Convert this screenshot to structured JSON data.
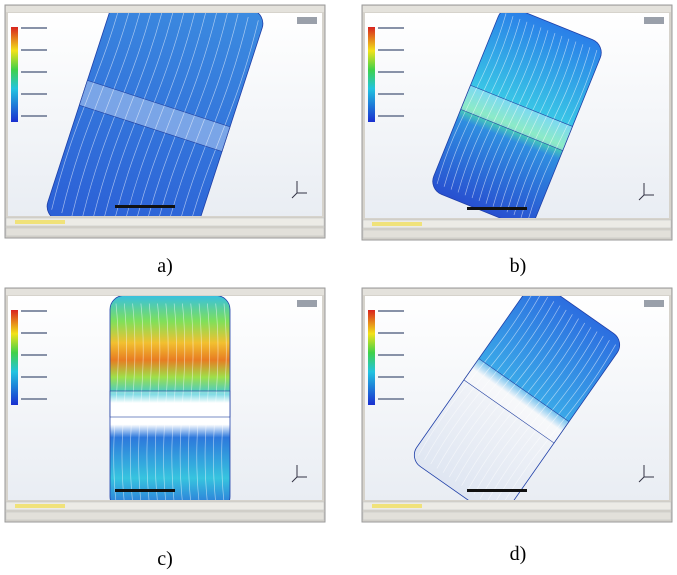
{
  "figure": {
    "panels": [
      {
        "label": "a)"
      },
      {
        "label": "b)"
      },
      {
        "label": "c)"
      },
      {
        "label": "d)"
      }
    ]
  }
}
